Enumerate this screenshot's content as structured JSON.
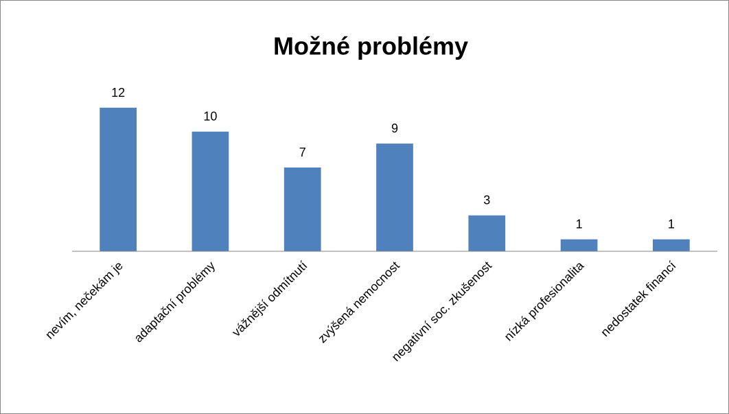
{
  "chart_data": {
    "type": "bar",
    "title": "Možné problémy",
    "categories": [
      "nevím, nečekám je",
      "adaptační problémy",
      "vážnější odmítnutí",
      "zvýšená nemocnost",
      "negativní soc. zkušenost",
      "nízká profesionalita",
      "nedostatek financí"
    ],
    "values": [
      12,
      10,
      7,
      9,
      3,
      1,
      1
    ],
    "color": "#4f81bd",
    "ylim": [
      0,
      14
    ]
  }
}
